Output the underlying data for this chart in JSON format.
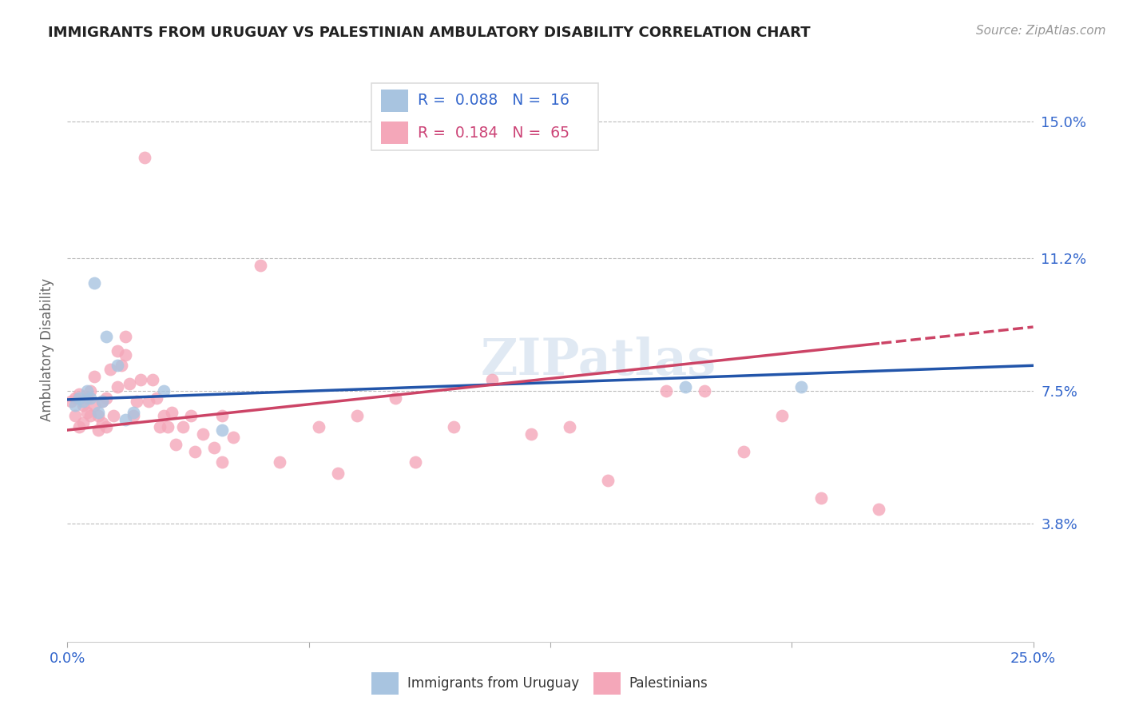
{
  "title": "IMMIGRANTS FROM URUGUAY VS PALESTINIAN AMBULATORY DISABILITY CORRELATION CHART",
  "source": "Source: ZipAtlas.com",
  "ylabel": "Ambulatory Disability",
  "ytick_labels": [
    "15.0%",
    "11.2%",
    "7.5%",
    "3.8%"
  ],
  "ytick_values": [
    0.15,
    0.112,
    0.075,
    0.038
  ],
  "xmin": 0.0,
  "xmax": 0.25,
  "ymin": 0.005,
  "ymax": 0.168,
  "legend1_r": "0.088",
  "legend1_n": "16",
  "legend2_r": "0.184",
  "legend2_n": "65",
  "uruguay_color": "#a8c4e0",
  "palestinian_color": "#f4a7b9",
  "line_uruguay_color": "#2255aa",
  "line_palestinian_color": "#cc4466",
  "watermark": "ZIPatlas",
  "uruguay_x": [
    0.002,
    0.003,
    0.004,
    0.005,
    0.006,
    0.007,
    0.008,
    0.009,
    0.01,
    0.013,
    0.015,
    0.017,
    0.025,
    0.04,
    0.16,
    0.19
  ],
  "uruguay_y": [
    0.071,
    0.073,
    0.072,
    0.075,
    0.073,
    0.105,
    0.069,
    0.072,
    0.09,
    0.082,
    0.067,
    0.069,
    0.075,
    0.064,
    0.076,
    0.076
  ],
  "palestinian_x": [
    0.001,
    0.002,
    0.002,
    0.003,
    0.003,
    0.004,
    0.004,
    0.005,
    0.005,
    0.006,
    0.006,
    0.007,
    0.007,
    0.008,
    0.008,
    0.009,
    0.009,
    0.01,
    0.01,
    0.011,
    0.012,
    0.013,
    0.013,
    0.014,
    0.015,
    0.015,
    0.016,
    0.017,
    0.018,
    0.019,
    0.02,
    0.021,
    0.022,
    0.023,
    0.024,
    0.025,
    0.026,
    0.027,
    0.028,
    0.03,
    0.032,
    0.033,
    0.035,
    0.038,
    0.04,
    0.04,
    0.043,
    0.05,
    0.055,
    0.065,
    0.07,
    0.075,
    0.085,
    0.09,
    0.1,
    0.11,
    0.12,
    0.13,
    0.14,
    0.155,
    0.165,
    0.175,
    0.185,
    0.195,
    0.21
  ],
  "palestinian_y": [
    0.072,
    0.068,
    0.073,
    0.065,
    0.074,
    0.066,
    0.071,
    0.069,
    0.073,
    0.068,
    0.075,
    0.071,
    0.079,
    0.064,
    0.068,
    0.072,
    0.066,
    0.073,
    0.065,
    0.081,
    0.068,
    0.086,
    0.076,
    0.082,
    0.09,
    0.085,
    0.077,
    0.068,
    0.072,
    0.078,
    0.14,
    0.072,
    0.078,
    0.073,
    0.065,
    0.068,
    0.065,
    0.069,
    0.06,
    0.065,
    0.068,
    0.058,
    0.063,
    0.059,
    0.055,
    0.068,
    0.062,
    0.11,
    0.055,
    0.065,
    0.052,
    0.068,
    0.073,
    0.055,
    0.065,
    0.078,
    0.063,
    0.065,
    0.05,
    0.075,
    0.075,
    0.058,
    0.068,
    0.045,
    0.042
  ]
}
